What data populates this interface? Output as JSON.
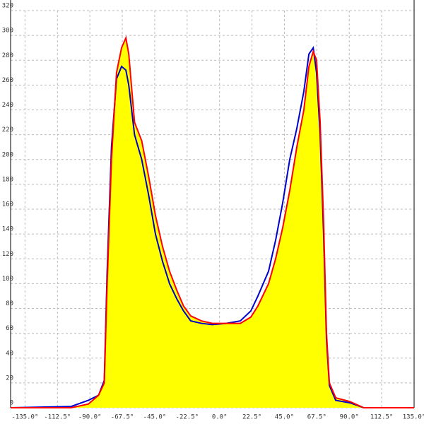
{
  "chart_data": {
    "type": "line",
    "x": [
      -145,
      -103,
      -91,
      -84,
      -80,
      -78,
      -75,
      -71.5,
      -68,
      -65,
      -63,
      -59,
      -54,
      -49,
      -44.5,
      -39.6,
      -34.7,
      -29.8,
      -25,
      -20,
      -12.6,
      -5,
      4.6,
      14.4,
      21.7,
      26.6,
      34,
      38.9,
      43.8,
      48.7,
      53.6,
      58.5,
      62,
      65,
      67.3,
      69.8,
      72.2,
      74.2,
      76.2,
      80.6,
      90.4,
      100,
      135
    ],
    "series": [
      {
        "color": "#0000cc",
        "values": [
          0,
          1,
          6,
          10,
          22,
          110,
          210,
          265,
          275,
          272,
          260,
          220,
          200,
          170,
          140,
          118,
          100,
          88,
          78,
          70,
          68,
          67,
          68,
          70,
          78,
          90,
          110,
          135,
          165,
          200,
          225,
          255,
          285,
          290,
          270,
          220,
          140,
          55,
          18,
          6,
          4,
          0,
          0
        ]
      },
      {
        "color": "#ff0000",
        "fill": "#ffff00",
        "values": [
          0,
          0,
          3,
          10,
          20,
          100,
          200,
          270,
          290,
          298,
          285,
          230,
          215,
          185,
          155,
          130,
          110,
          95,
          82,
          74,
          70,
          68,
          68,
          68,
          73,
          82,
          100,
          120,
          145,
          175,
          210,
          240,
          275,
          287,
          280,
          230,
          150,
          60,
          20,
          8,
          5,
          0,
          0
        ]
      }
    ],
    "xlim": [
      -145,
      135
    ],
    "ylim": [
      0,
      320
    ],
    "xticks": [
      {
        "value": -135,
        "label": "-135.0°"
      },
      {
        "value": -112.5,
        "label": "-112.5°"
      },
      {
        "value": -90,
        "label": "-90.0°"
      },
      {
        "value": -67.5,
        "label": "-67.5°"
      },
      {
        "value": -45,
        "label": "-45.0°"
      },
      {
        "value": -22.5,
        "label": "-22.5°"
      },
      {
        "value": 0,
        "label": "0.0°"
      },
      {
        "value": 22.5,
        "label": "22.5°"
      },
      {
        "value": 45,
        "label": "45.0°"
      },
      {
        "value": 67.5,
        "label": "67.5°"
      },
      {
        "value": 90,
        "label": "90.0°"
      },
      {
        "value": 112.5,
        "label": "112.5°"
      },
      {
        "value": 135,
        "label": "135.0°"
      }
    ],
    "yticks": [
      0,
      20,
      40,
      60,
      80,
      100,
      120,
      140,
      160,
      180,
      200,
      220,
      240,
      260,
      280,
      300,
      320
    ],
    "grid": true
  }
}
